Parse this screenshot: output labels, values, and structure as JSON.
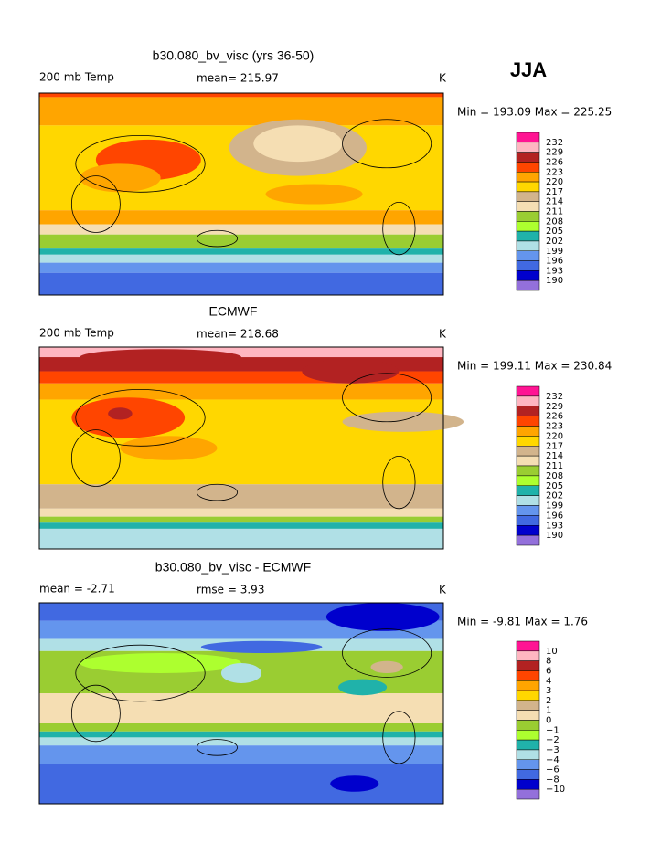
{
  "season": "JJA",
  "panels": [
    {
      "title": "b30.080_bv_visc (yrs 36-50)",
      "variable": "200 mb Temp",
      "stat": "mean= 215.97",
      "units": "K",
      "range": "Min = 193.09 Max = 225.25",
      "colorbar": {
        "labels": [
          232,
          229,
          226,
          223,
          220,
          217,
          214,
          211,
          208,
          205,
          202,
          199,
          196,
          193,
          190
        ],
        "colors": [
          "#ff1493",
          "#ffb6c1",
          "#b22222",
          "#ff4500",
          "#ffa500",
          "#ffd700",
          "#d2b48c",
          "#f5deb3",
          "#9acd32",
          "#adff2f",
          "#20b2aa",
          "#b0e0e6",
          "#6495ed",
          "#4169e1",
          "#0000cd",
          "#9370db"
        ]
      }
    },
    {
      "title": "ECMWF",
      "variable": "200 mb Temp",
      "stat": "mean= 218.68",
      "units": "K",
      "range": "Min = 199.11 Max = 230.84",
      "colorbar": {
        "labels": [
          232,
          229,
          226,
          223,
          220,
          217,
          214,
          211,
          208,
          205,
          202,
          199,
          196,
          193,
          190
        ],
        "colors": [
          "#ff1493",
          "#ffb6c1",
          "#b22222",
          "#ff4500",
          "#ffa500",
          "#ffd700",
          "#d2b48c",
          "#f5deb3",
          "#9acd32",
          "#adff2f",
          "#20b2aa",
          "#b0e0e6",
          "#6495ed",
          "#4169e1",
          "#0000cd",
          "#9370db"
        ]
      }
    },
    {
      "title": "b30.080_bv_visc - ECMWF",
      "variable": "mean =   -2.71",
      "stat": "rmse =   3.93",
      "units": "K",
      "range": "Min =  -9.81 Max =   1.76",
      "colorbar": {
        "labels": [
          10,
          8,
          6,
          4,
          3,
          2,
          1,
          0,
          {
            "value": -1,
            "label": "−1"
          },
          {
            "value": -2,
            "label": "−2"
          },
          {
            "value": -3,
            "label": "−3"
          },
          {
            "value": -4,
            "label": "−4"
          },
          {
            "value": -6,
            "label": "−6"
          },
          {
            "value": -8,
            "label": "−8"
          },
          {
            "value": -10,
            "label": "−10"
          }
        ],
        "colors": [
          "#ff1493",
          "#ffb6c1",
          "#b22222",
          "#ff4500",
          "#ffa500",
          "#ffd700",
          "#d2b48c",
          "#f5deb3",
          "#9acd32",
          "#adff2f",
          "#20b2aa",
          "#b0e0e6",
          "#6495ed",
          "#4169e1",
          "#0000cd",
          "#9370db"
        ]
      }
    }
  ]
}
